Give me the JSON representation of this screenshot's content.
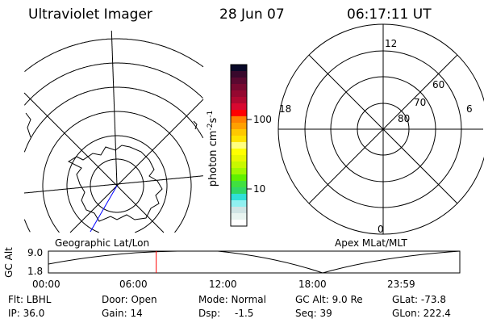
{
  "header": {
    "instrument": "Ultraviolet Imager",
    "date": "28 Jun 07",
    "time": "06:17:11 UT"
  },
  "colorbar": {
    "label": "photon cm",
    "exp1": "-2",
    "unit2": "s",
    "exp2": "-1",
    "ticks": [
      "100",
      "10"
    ],
    "colors": [
      "#080828",
      "#38082c",
      "#5a0830",
      "#780830",
      "#940830",
      "#b00830",
      "#d80830",
      "#ff0000",
      "#ff8000",
      "#ffa000",
      "#ffc800",
      "#ffe400",
      "#ffff80",
      "#ffff00",
      "#e8f800",
      "#c8f800",
      "#a0f800",
      "#60f000",
      "#40e040",
      "#30d868",
      "#30e0d8",
      "#90f0f0",
      "#d0e4e4",
      "#e8f4f0",
      "#ffffff"
    ]
  },
  "polar": {
    "mlt_labels": [
      "12",
      "18",
      "6",
      "0"
    ],
    "lat_labels": [
      "80",
      "70",
      "60"
    ]
  },
  "plot_labels": {
    "left": "Geographic Lat/Lon",
    "right": "Apex MLat/MLT"
  },
  "altitude": {
    "ylabel": "GC Alt",
    "yticks": [
      "9.0",
      "1.8"
    ],
    "xticks": [
      "00:00",
      "06:00",
      "12:00",
      "18:00",
      "23:59"
    ],
    "current_time_hours": 6.29,
    "marker_color": "#ff0000"
  },
  "info": {
    "filter": "Flt: LBHL",
    "ip": "IP: 36.0",
    "door": "Door: Open",
    "gain": "Gain: 14",
    "mode": "Mode: Normal",
    "dsp_label": "Dsp:",
    "dsp_value": "-1.5",
    "gcalt": "GC Alt: 9.0 Re",
    "seq": "Seq: 39",
    "glat": "GLat: -73.8",
    "glon": "GLon: 222.4"
  }
}
